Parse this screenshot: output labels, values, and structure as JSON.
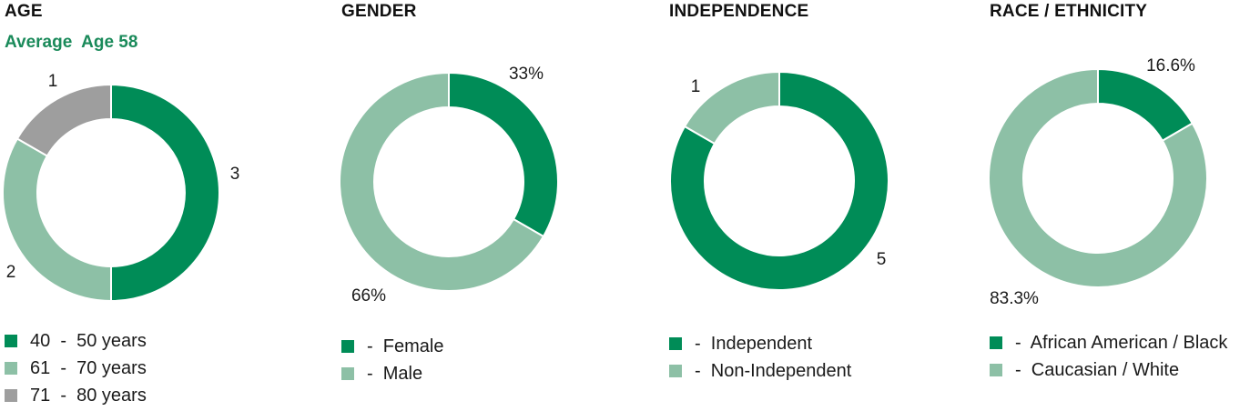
{
  "colors": {
    "dark_green": "#008c57",
    "light_green": "#8dc0a6",
    "gray": "#9e9e9e"
  },
  "chart_data": [
    {
      "type": "donut",
      "title": "AGE",
      "subtitle": "Average  Age 58",
      "segments": [
        {
          "label": "3",
          "value": 3,
          "color": "#008c57"
        },
        {
          "label": "2",
          "value": 2,
          "color": "#8dc0a6"
        },
        {
          "label": "1",
          "value": 1,
          "color": "#9e9e9e"
        }
      ],
      "legend": [
        {
          "text": "40  -  50 years",
          "color": "#008c57"
        },
        {
          "text": "61  -  70 years",
          "color": "#8dc0a6"
        },
        {
          "text": "71  -  80 years",
          "color": "#9e9e9e"
        }
      ]
    },
    {
      "type": "donut",
      "title": "GENDER",
      "segments": [
        {
          "label": "33%",
          "value": 33,
          "color": "#008c57"
        },
        {
          "label": "66%",
          "value": 66,
          "color": "#8dc0a6"
        }
      ],
      "legend": [
        {
          "text": "-  Female",
          "color": "#008c57"
        },
        {
          "text": "-  Male",
          "color": "#8dc0a6"
        }
      ]
    },
    {
      "type": "donut",
      "title": "INDEPENDENCE",
      "segments": [
        {
          "label": "5",
          "value": 5,
          "color": "#008c57"
        },
        {
          "label": "1",
          "value": 1,
          "color": "#8dc0a6"
        }
      ],
      "legend": [
        {
          "text": "-  Independent",
          "color": "#008c57"
        },
        {
          "text": "-  Non-Independent",
          "color": "#8dc0a6"
        }
      ]
    },
    {
      "type": "donut",
      "title": "RACE / ETHNICITY",
      "segments": [
        {
          "label": "16.6%",
          "value": 16.6,
          "color": "#008c57"
        },
        {
          "label": "83.3%",
          "value": 83.3,
          "color": "#8dc0a6"
        }
      ],
      "legend": [
        {
          "text": "-  African American / Black",
          "color": "#008c57"
        },
        {
          "text": "-  Caucasian / White",
          "color": "#8dc0a6"
        }
      ]
    }
  ]
}
